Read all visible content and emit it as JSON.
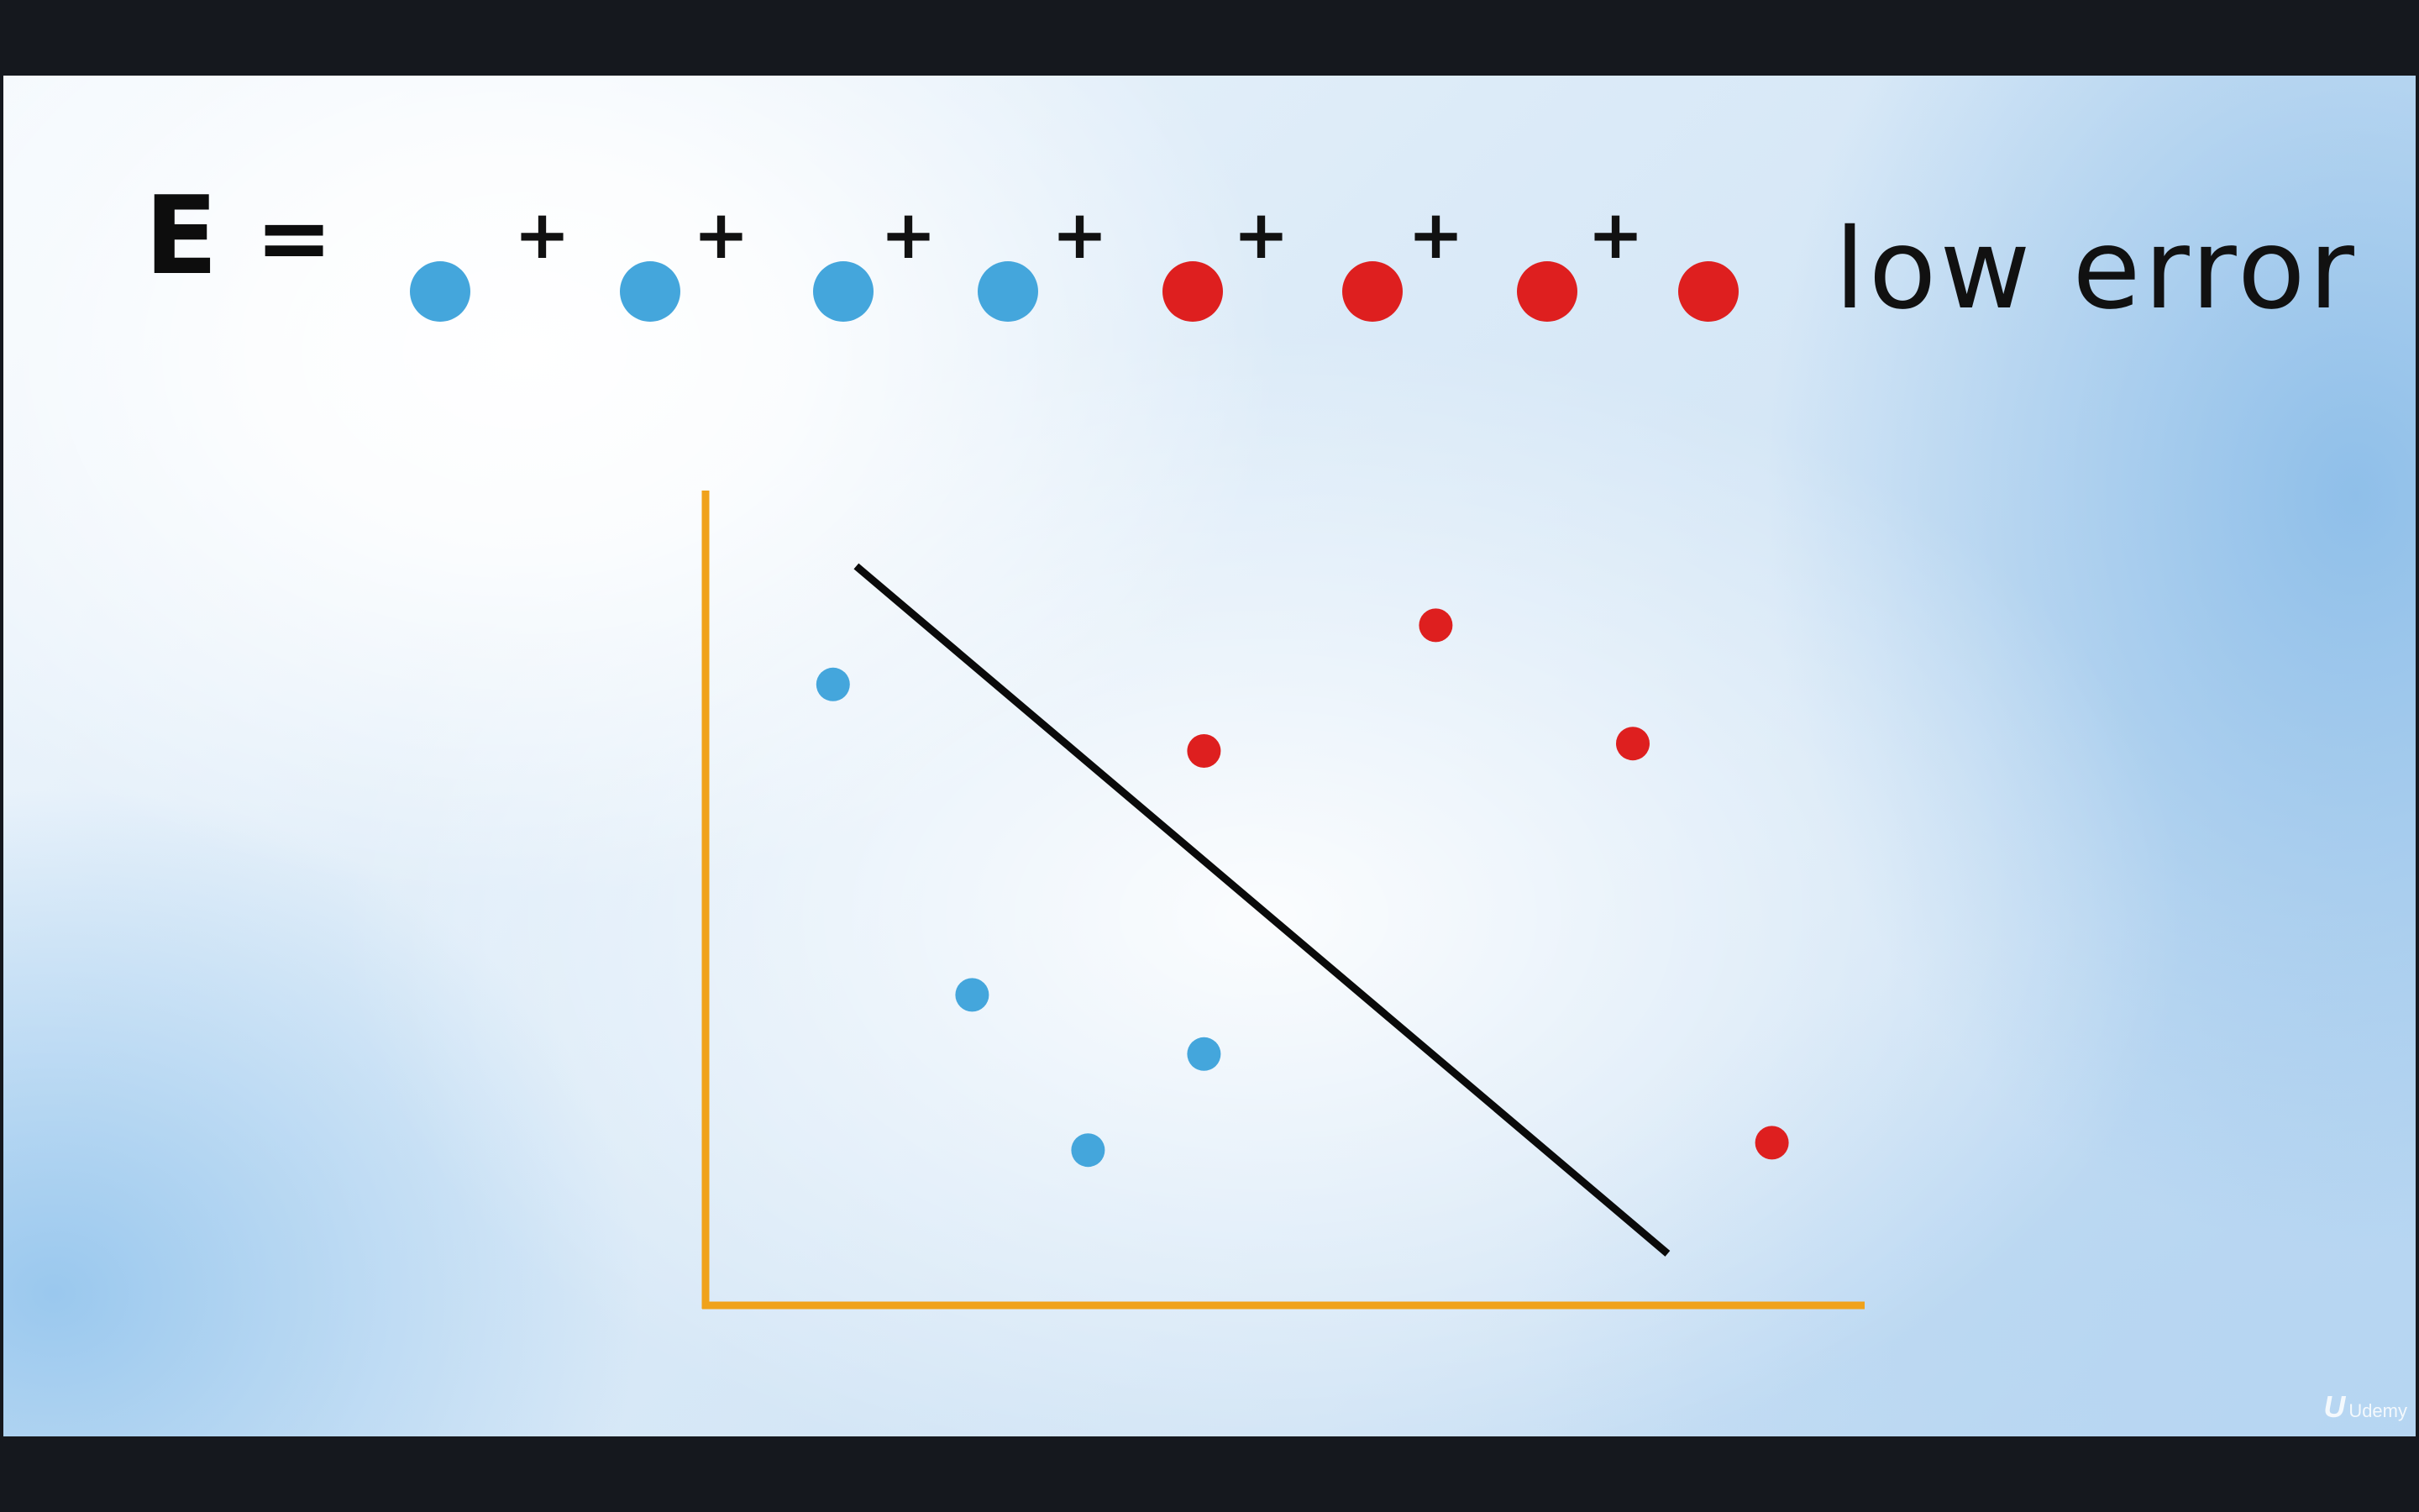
{
  "equation": {
    "label": "E",
    "equals": "=",
    "plus": "+",
    "terms": [
      "blue",
      "blue",
      "blue",
      "blue",
      "red",
      "red",
      "red",
      "red"
    ]
  },
  "title": "low error",
  "colors": {
    "blue_point": "#44a6dc",
    "red_point": "#de1f1f",
    "axis": "#f0a21b",
    "boundary_line": "#0a0a0a",
    "text": "#111111"
  },
  "chart_data": {
    "type": "scatter",
    "title": "",
    "xlabel": "",
    "ylabel": "",
    "grid": false,
    "axes_tick_labels": false,
    "series": [
      {
        "class": "blue",
        "points": [
          [
            0.11,
            0.84
          ],
          [
            0.23,
            0.42
          ],
          [
            0.43,
            0.34
          ],
          [
            0.33,
            0.21
          ]
        ]
      },
      {
        "class": "red",
        "points": [
          [
            0.63,
            0.92
          ],
          [
            0.43,
            0.75
          ],
          [
            0.8,
            0.76
          ],
          [
            0.92,
            0.22
          ]
        ]
      }
    ],
    "boundary_line": [
      [
        0.13,
        1.0
      ],
      [
        0.83,
        0.07
      ]
    ],
    "xlim": [
      0,
      1
    ],
    "ylim": [
      0,
      1
    ]
  },
  "watermark": {
    "logo": "U",
    "text": "Udemy"
  }
}
